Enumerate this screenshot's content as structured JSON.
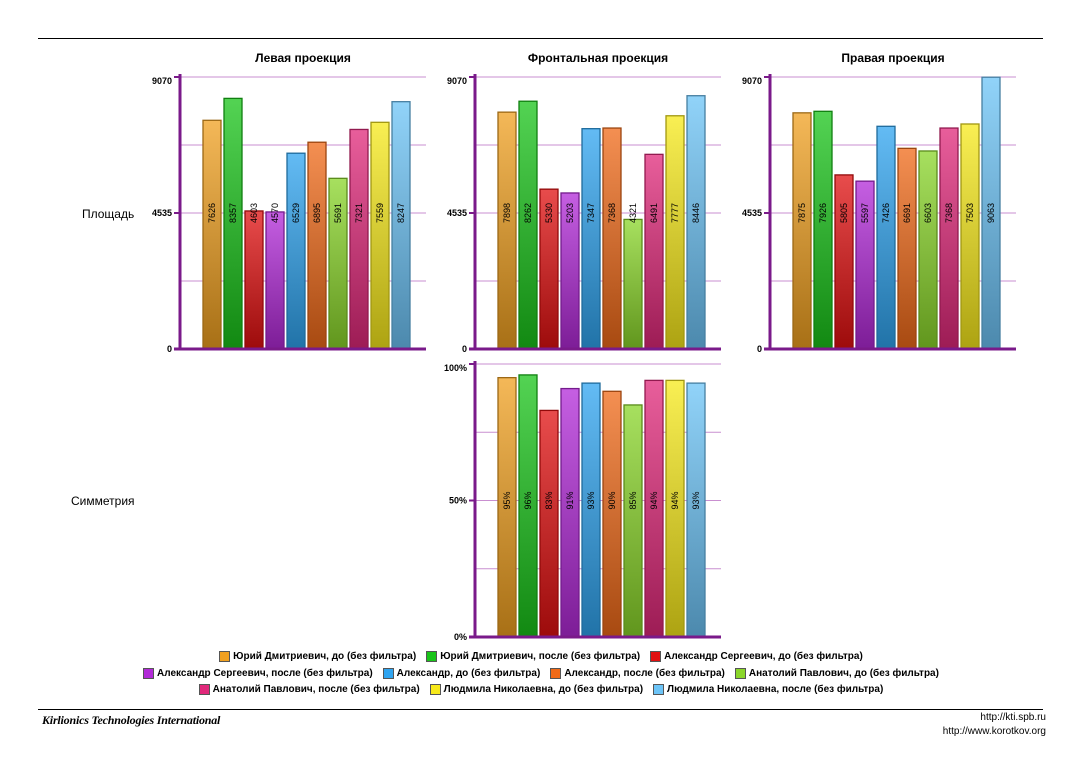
{
  "rows": {
    "area_label": "Площадь",
    "symmetry_label": "Симметрия"
  },
  "footer": {
    "brand": "Kirlionics Technologies International",
    "url1": "http://kti.spb.ru",
    "url2": "http://www.korotkov.org"
  },
  "colors": {
    "axis": "#7a1a8a",
    "grid": "#c98fd0",
    "series": [
      "#f0a020",
      "#19c419",
      "#e01010",
      "#b22ad8",
      "#2fa4f0",
      "#f06a18",
      "#8ad62a",
      "#e0287a",
      "#f7e91a",
      "#6cc4f7"
    ]
  },
  "legend": [
    "Юрий Дмитриевич, до (без фильтра)",
    "Юрий Дмитриевич, после (без фильтра)",
    "Александр Сергеевич, до (без фильтра)",
    "Александр Сергеевич, после (без фильтра)",
    "Александр, до (без фильтра)",
    "Александр, после (без фильтра)",
    "Анатолий Павлович, до (без фильтра)",
    "Анатолий Павлович, после (без фильтра)",
    "Людмила Николаевна, до (без фильтра)",
    "Людмила Николаевна, после (без фильтра)"
  ],
  "chart_data": [
    {
      "type": "bar",
      "title": "Левая проекция",
      "ylim": [
        0,
        9070
      ],
      "yticks": [
        "0",
        "4535",
        "9070"
      ],
      "values": [
        7626,
        8357,
        4603,
        4570,
        6529,
        6895,
        5691,
        7321,
        7559,
        8247
      ],
      "labels": [
        "7626",
        "8357",
        "4603",
        "4570",
        "6529",
        "6895",
        "5691",
        "7321",
        "7559",
        "8247"
      ]
    },
    {
      "type": "bar",
      "title": "Фронтальная проекция",
      "ylim": [
        0,
        9070
      ],
      "yticks": [
        "0",
        "4535",
        "9070"
      ],
      "values": [
        7898,
        8262,
        5330,
        5203,
        7347,
        7368,
        4321,
        6491,
        7777,
        8446
      ],
      "labels": [
        "7898",
        "8262",
        "5330",
        "5203",
        "7347",
        "7368",
        "4321",
        "6491",
        "7777",
        "8446"
      ]
    },
    {
      "type": "bar",
      "title": "Правая проекция",
      "ylim": [
        0,
        9070
      ],
      "yticks": [
        "0",
        "4535",
        "9070"
      ],
      "values": [
        7875,
        7926,
        5805,
        5597,
        7426,
        6691,
        6603,
        7368,
        7503,
        9063
      ],
      "labels": [
        "7875",
        "7926",
        "5805",
        "5597",
        "7426",
        "6691",
        "6603",
        "7368",
        "7503",
        "9063"
      ]
    },
    {
      "type": "bar",
      "title": "",
      "ylim": [
        0,
        100
      ],
      "yticks": [
        "0%",
        "50%",
        "100%"
      ],
      "values": [
        95,
        96,
        83,
        91,
        93,
        90,
        85,
        94,
        94,
        93
      ],
      "labels": [
        "95%",
        "96%",
        "83%",
        "91%",
        "93%",
        "90%",
        "85%",
        "94%",
        "94%",
        "93%"
      ]
    }
  ]
}
